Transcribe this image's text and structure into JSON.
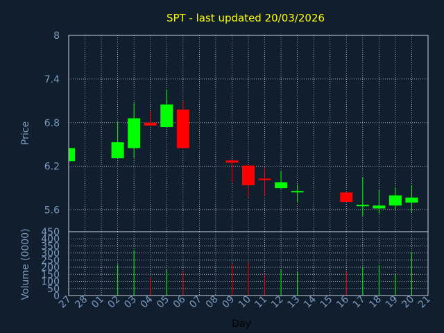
{
  "chart_data": {
    "type": "candlestick",
    "title": "SPT - last updated 20/03/2026",
    "xlabel": "Day",
    "price_ylabel": "Price",
    "volume_ylabel": "Volume (0000)",
    "price_ylim": [
      5.3,
      8
    ],
    "price_ticks": [
      "8",
      "7.4",
      "6.8",
      "6.2",
      "5.6"
    ],
    "volume_ylim": [
      0,
      450
    ],
    "volume_ticks": [
      "450",
      "400",
      "350",
      "300",
      "250",
      "200",
      "150",
      "100",
      "50",
      "0"
    ],
    "x_ticks": [
      "27",
      "28",
      "01",
      "02",
      "03",
      "04",
      "05",
      "06",
      "07",
      "08",
      "09",
      "10",
      "11",
      "12",
      "13",
      "14",
      "15",
      "16",
      "17",
      "18",
      "19",
      "20",
      "21"
    ],
    "grid": true,
    "colors": {
      "background": "#111e2e",
      "plot_border": "#c8d2dc",
      "grid": "#c8d2dc",
      "axis_text": "#7a9cc0",
      "title": "#ffff00",
      "up": "#00ff00",
      "down": "#ff0000"
    },
    "candles": [
      {
        "day": "27",
        "open": 6.27,
        "high": 6.45,
        "low": 6.27,
        "close": 6.45,
        "volume": 0
      },
      {
        "day": "02",
        "open": 6.31,
        "high": 6.81,
        "low": 6.31,
        "close": 6.53,
        "volume": 220
      },
      {
        "day": "03",
        "open": 6.45,
        "high": 7.07,
        "low": 6.32,
        "close": 6.86,
        "volume": 320
      },
      {
        "day": "04",
        "open": 6.8,
        "high": 6.96,
        "low": 6.76,
        "close": 6.76,
        "volume": 130
      },
      {
        "day": "05",
        "open": 6.74,
        "high": 7.26,
        "low": 6.74,
        "close": 7.05,
        "volume": 180
      },
      {
        "day": "06",
        "open": 6.98,
        "high": 7.1,
        "low": 6.45,
        "close": 6.45,
        "volume": 170
      },
      {
        "day": "09",
        "open": 6.28,
        "high": 6.28,
        "low": 5.98,
        "close": 6.25,
        "volume": 225
      },
      {
        "day": "10",
        "open": 6.21,
        "high": 6.21,
        "low": 5.77,
        "close": 5.94,
        "volume": 235
      },
      {
        "day": "11",
        "open": 6.03,
        "high": 6.18,
        "low": 5.79,
        "close": 6.01,
        "volume": 150
      },
      {
        "day": "12",
        "open": 5.9,
        "high": 6.13,
        "low": 5.89,
        "close": 5.98,
        "volume": 180
      },
      {
        "day": "13",
        "open": 5.85,
        "high": 5.95,
        "low": 5.7,
        "close": 5.86,
        "volume": 170
      },
      {
        "day": "16",
        "open": 5.84,
        "high": 5.84,
        "low": 5.71,
        "close": 5.71,
        "volume": 175
      },
      {
        "day": "17",
        "open": 5.66,
        "high": 6.05,
        "low": 5.52,
        "close": 5.67,
        "volume": 200
      },
      {
        "day": "18",
        "open": 5.62,
        "high": 5.88,
        "low": 5.55,
        "close": 5.66,
        "volume": 215
      },
      {
        "day": "19",
        "open": 5.66,
        "high": 5.91,
        "low": 5.61,
        "close": 5.8,
        "volume": 150
      },
      {
        "day": "20",
        "open": 5.7,
        "high": 5.94,
        "low": 5.57,
        "close": 5.77,
        "volume": 305
      }
    ]
  }
}
